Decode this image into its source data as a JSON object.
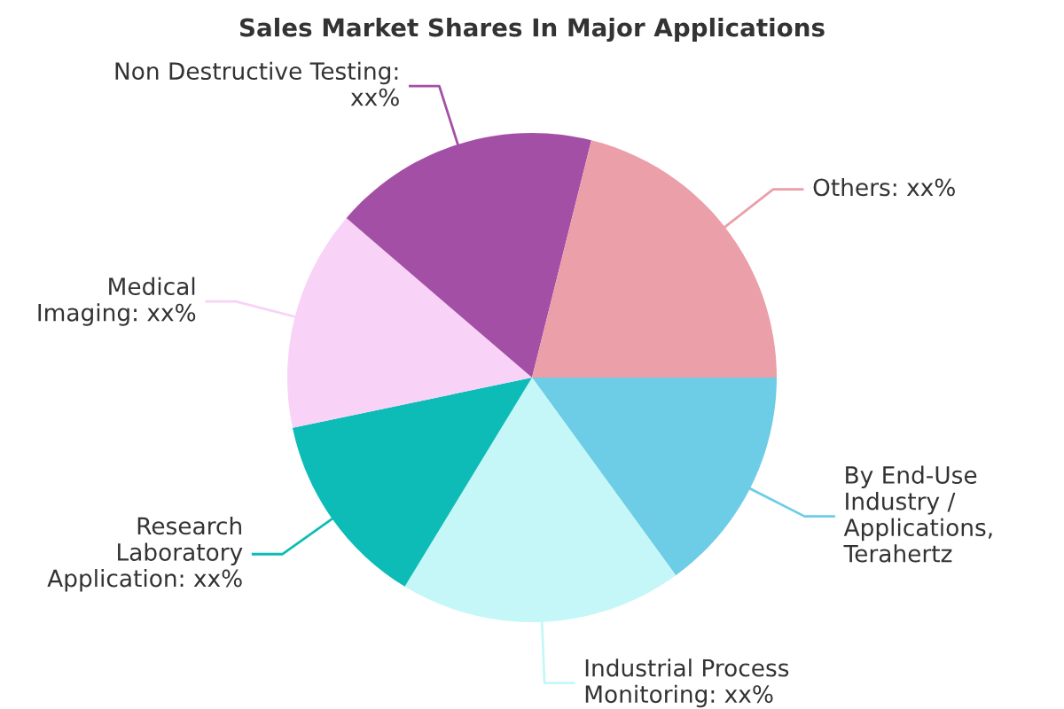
{
  "chart_data": {
    "type": "pie",
    "title": "Sales Market Shares In Major Applications",
    "categories": [
      "By End-Use\nIndustry /\nApplications,\nTerahertz",
      "Industrial Process\nMonitoring: xx%",
      "Research\nLaboratory\nApplication: xx%",
      "Medical\nImaging: xx%",
      "Non Destructive Testing:\nxx%",
      "Others: xx%"
    ],
    "values": [
      15,
      18.7,
      13,
      14.6,
      17.6,
      21.1
    ],
    "colors": [
      "#6ecde6",
      "#c5f7f8",
      "#0dbcb6",
      "#f9d3f7",
      "#a44fa6",
      "#eb9fa8"
    ]
  }
}
